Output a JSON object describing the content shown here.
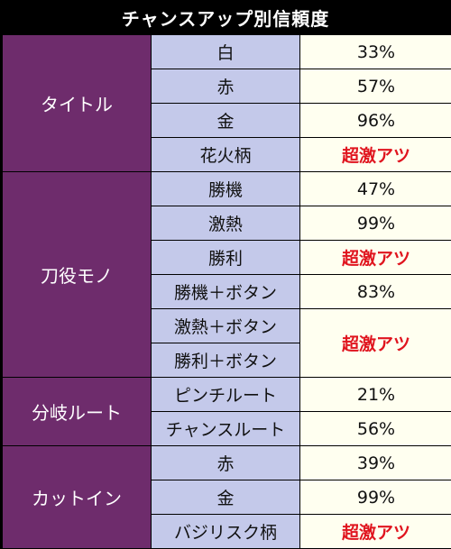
{
  "title": "チャンスアップ別信頼度",
  "accent": {
    "group_bg": "#6e2c6c",
    "item_bg": "#c4c9ea",
    "value_bg": "#fffff0",
    "hot_text": "#e0141e"
  },
  "groups": [
    {
      "name": "タイトル",
      "rows": [
        {
          "item": "白",
          "value": "33%"
        },
        {
          "item": "赤",
          "value": "57%"
        },
        {
          "item": "金",
          "value": "96%"
        },
        {
          "item": "花火柄",
          "value": "超激アツ"
        }
      ]
    },
    {
      "name": "刀役モノ",
      "rows": [
        {
          "item": "勝機",
          "value": "47%"
        },
        {
          "item": "激熱",
          "value": "99%"
        },
        {
          "item": "勝利",
          "value": "超激アツ"
        },
        {
          "item": "勝機＋ボタン",
          "value": "83%"
        },
        {
          "item": "激熱＋ボタン",
          "value": "超激アツ"
        },
        {
          "item": "勝利＋ボタン"
        }
      ]
    },
    {
      "name": "分岐ルート",
      "rows": [
        {
          "item": "ピンチルート",
          "value": "21%"
        },
        {
          "item": "チャンスルート",
          "value": "56%"
        }
      ]
    },
    {
      "name": "カットイン",
      "rows": [
        {
          "item": "赤",
          "value": "39%"
        },
        {
          "item": "金",
          "value": "99%"
        },
        {
          "item": "バジリスク柄",
          "value": "超激アツ"
        }
      ]
    }
  ]
}
